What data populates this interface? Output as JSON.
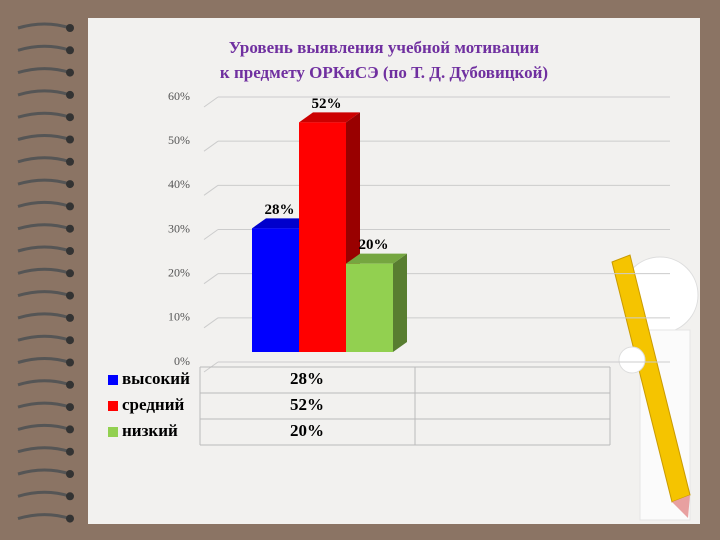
{
  "chart_data": {
    "type": "bar3d",
    "title_lines": [
      "Уровень выявления учебной мотивации",
      "к предмету ОРКиСЭ (по Т. Д. Дубовицкой)"
    ],
    "categories": [
      null
    ],
    "series": [
      {
        "name": "высокий",
        "color": "#0000ff",
        "values": [
          28
        ],
        "value_labels": [
          "28%"
        ]
      },
      {
        "name": "средний",
        "color": "#ff0000",
        "values": [
          52
        ],
        "value_labels": [
          "52%"
        ]
      },
      {
        "name": "низкий",
        "color": "#92d050",
        "values": [
          20
        ],
        "value_labels": [
          "20%"
        ]
      }
    ],
    "ylim": [
      0,
      60
    ],
    "yticks": [
      {
        "value": 0,
        "label": "0%"
      },
      {
        "value": 10,
        "label": "10%"
      },
      {
        "value": 20,
        "label": "20%"
      },
      {
        "value": 30,
        "label": "30%"
      },
      {
        "value": 40,
        "label": "40%"
      },
      {
        "value": 50,
        "label": "50%"
      },
      {
        "value": 60,
        "label": "60%"
      }
    ],
    "grid": true,
    "data_table": true
  }
}
